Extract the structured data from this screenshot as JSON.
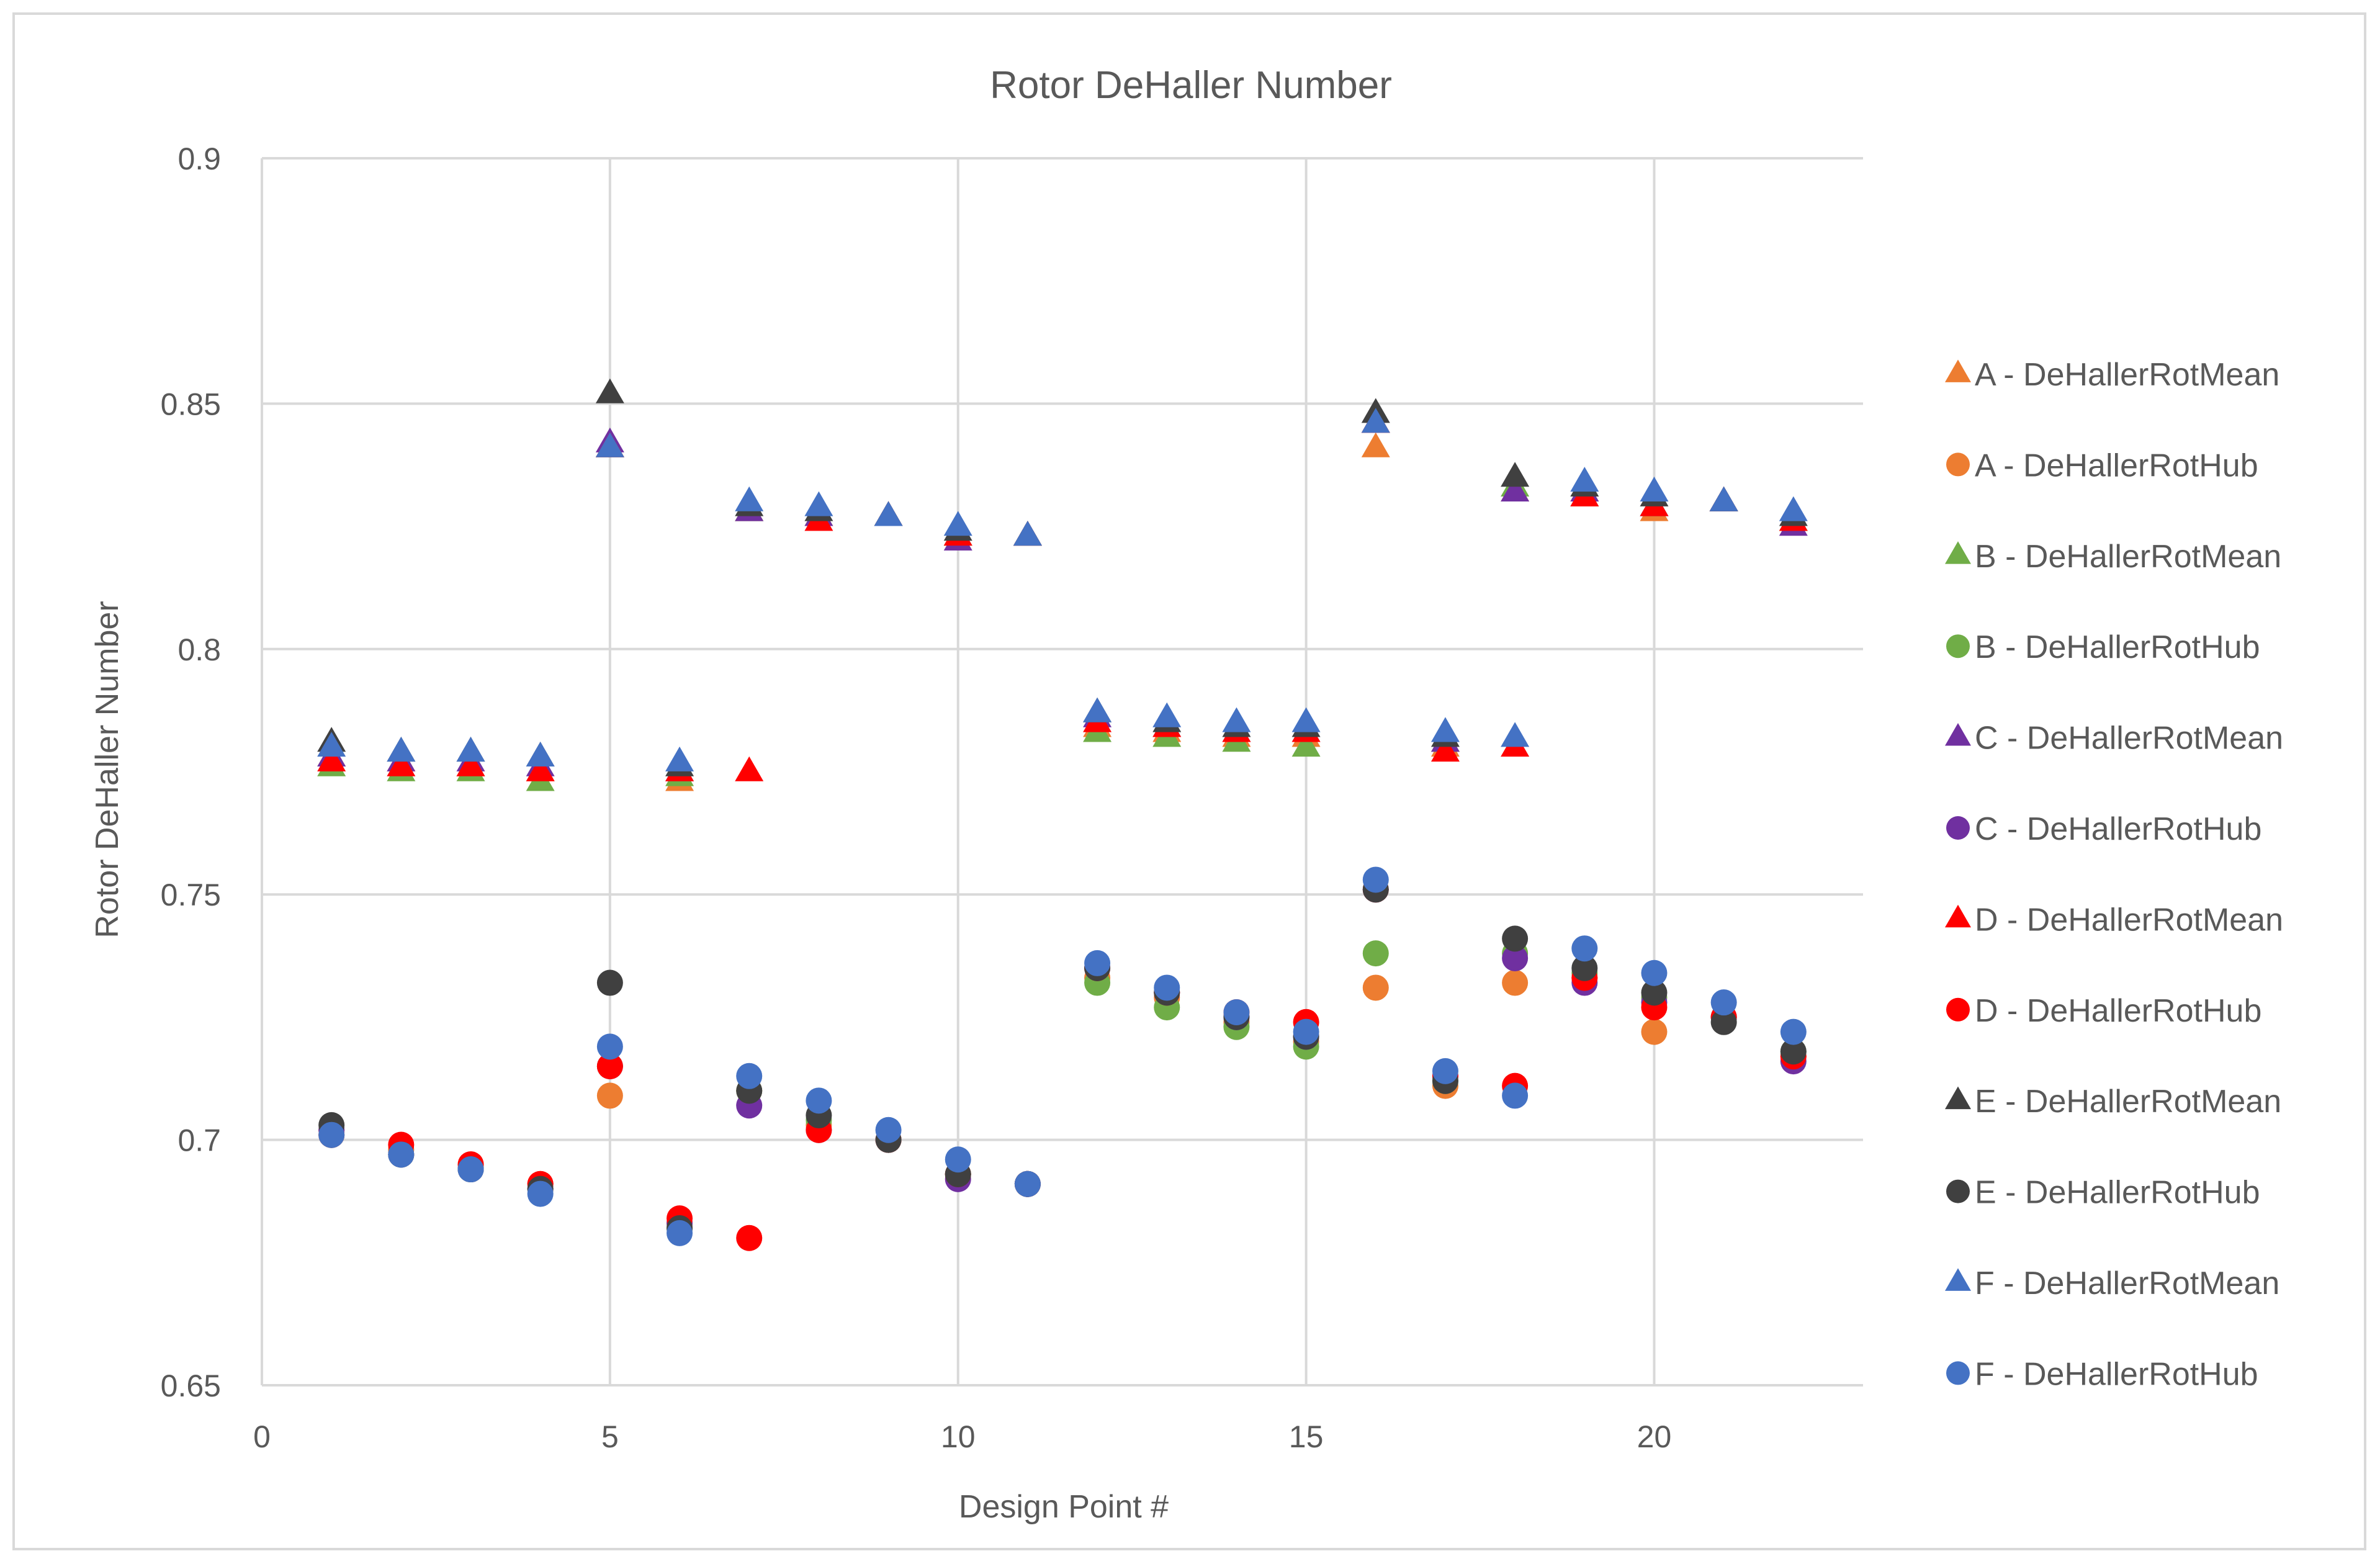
{
  "chart_data": {
    "type": "scatter",
    "title": "Rotor DeHaller Number",
    "xlabel": "Design Point #",
    "ylabel": "Rotor DeHaller Number",
    "xlim": [
      0,
      23
    ],
    "ylim": [
      0.65,
      0.9
    ],
    "x_ticks": [
      0,
      5,
      10,
      15,
      20
    ],
    "y_ticks": [
      0.65,
      0.7,
      0.75,
      0.8,
      0.85,
      0.9
    ],
    "x_tick_labels": [
      "0",
      "5",
      "10",
      "15",
      "20"
    ],
    "y_tick_labels": [
      "0.65",
      "0.7",
      "0.75",
      "0.8",
      "0.85",
      "0.9"
    ],
    "grid": true,
    "legend_position": "right",
    "series": [
      {
        "name": "A - DeHallerRotMean",
        "marker": "triangle",
        "color": "#ed7d31",
        "x": [
          1,
          2,
          3,
          4,
          5,
          6,
          7,
          8,
          9,
          10,
          11,
          12,
          13,
          14,
          15,
          16,
          17,
          18,
          19,
          20,
          21,
          22
        ],
        "y": [
          0.778,
          0.777,
          0.776,
          0.775,
          0.841,
          0.773,
          0.828,
          0.827,
          0.827,
          0.823,
          0.823,
          0.784,
          0.783,
          0.782,
          0.782,
          0.841,
          0.78,
          0.832,
          0.831,
          0.828,
          0.83,
          0.826
        ]
      },
      {
        "name": "A - DeHallerRotHub",
        "marker": "circle",
        "color": "#ed7d31",
        "x": [
          1,
          2,
          3,
          4,
          5,
          6,
          7,
          8,
          9,
          10,
          11,
          12,
          13,
          14,
          15,
          16,
          17,
          18,
          19,
          20,
          21,
          22
        ],
        "y": [
          0.702,
          0.698,
          0.695,
          0.691,
          0.709,
          0.683,
          0.71,
          0.703,
          0.7,
          0.693,
          0.691,
          0.733,
          0.729,
          0.724,
          0.72,
          0.731,
          0.711,
          0.732,
          0.733,
          0.722,
          0.725,
          0.717
        ]
      },
      {
        "name": "B - DeHallerRotMean",
        "marker": "triangle",
        "color": "#70ad47",
        "x": [
          1,
          2,
          3,
          4,
          5,
          6,
          7,
          8,
          9,
          10,
          11,
          12,
          13,
          14,
          15,
          16,
          17,
          18,
          19,
          20,
          21,
          22
        ],
        "y": [
          0.776,
          0.775,
          0.775,
          0.773,
          0.841,
          0.774,
          0.828,
          0.827,
          0.827,
          0.823,
          0.823,
          0.783,
          0.782,
          0.781,
          0.78,
          0.846,
          0.781,
          0.833,
          0.832,
          0.829,
          0.83,
          0.826
        ]
      },
      {
        "name": "B - DeHallerRotHub",
        "marker": "circle",
        "color": "#70ad47",
        "x": [
          1,
          2,
          3,
          4,
          5,
          6,
          7,
          8,
          9,
          10,
          11,
          12,
          13,
          14,
          15,
          16,
          17,
          18,
          19,
          20,
          21,
          22
        ],
        "y": [
          0.701,
          0.697,
          0.694,
          0.69,
          0.715,
          0.682,
          0.71,
          0.704,
          0.7,
          0.693,
          0.691,
          0.732,
          0.727,
          0.723,
          0.719,
          0.738,
          0.712,
          0.738,
          0.734,
          0.729,
          0.725,
          0.718
        ]
      },
      {
        "name": "C - DeHallerRotMean",
        "marker": "triangle",
        "color": "#7030a0",
        "x": [
          1,
          2,
          3,
          4,
          5,
          6,
          7,
          8,
          9,
          10,
          11,
          12,
          13,
          14,
          15,
          16,
          17,
          18,
          19,
          20,
          21,
          22
        ],
        "y": [
          0.778,
          0.777,
          0.777,
          0.776,
          0.842,
          0.775,
          0.828,
          0.827,
          0.827,
          0.822,
          0.823,
          0.786,
          0.784,
          0.783,
          0.783,
          0.846,
          0.781,
          0.832,
          0.832,
          0.829,
          0.83,
          0.825
        ]
      },
      {
        "name": "C - DeHallerRotHub",
        "marker": "circle",
        "color": "#7030a0",
        "x": [
          1,
          2,
          3,
          4,
          5,
          6,
          7,
          8,
          9,
          10,
          11,
          12,
          13,
          14,
          15,
          16,
          17,
          18,
          19,
          20,
          21,
          22
        ],
        "y": [
          0.702,
          0.697,
          0.694,
          0.69,
          0.715,
          0.683,
          0.707,
          0.702,
          0.7,
          0.692,
          0.691,
          0.735,
          0.73,
          0.725,
          0.721,
          0.751,
          0.713,
          0.737,
          0.732,
          0.728,
          0.725,
          0.716
        ]
      },
      {
        "name": "D - DeHallerRotMean",
        "marker": "triangle",
        "color": "#ff0000",
        "x": [
          1,
          2,
          3,
          4,
          5,
          6,
          7,
          8,
          9,
          10,
          11,
          12,
          13,
          14,
          15,
          16,
          17,
          18,
          19,
          20,
          21,
          22
        ],
        "y": [
          0.777,
          0.776,
          0.776,
          0.775,
          0.841,
          0.775,
          0.775,
          0.826,
          0.827,
          0.823,
          0.823,
          0.785,
          0.784,
          0.783,
          0.783,
          0.846,
          0.779,
          0.78,
          0.831,
          0.829,
          0.83,
          0.826
        ]
      },
      {
        "name": "D - DeHallerRotHub",
        "marker": "circle",
        "color": "#ff0000",
        "x": [
          1,
          2,
          3,
          4,
          5,
          6,
          7,
          8,
          9,
          10,
          11,
          12,
          13,
          14,
          15,
          16,
          17,
          18,
          19,
          20,
          21,
          22
        ],
        "y": [
          0.701,
          0.699,
          0.695,
          0.691,
          0.715,
          0.684,
          0.68,
          0.702,
          0.7,
          0.693,
          0.691,
          0.735,
          0.73,
          0.726,
          0.724,
          0.751,
          0.713,
          0.711,
          0.733,
          0.727,
          0.725,
          0.717
        ]
      },
      {
        "name": "E - DeHallerRotMean",
        "marker": "triangle",
        "color": "#404040",
        "x": [
          1,
          2,
          3,
          4,
          5,
          6,
          7,
          8,
          9,
          10,
          11,
          12,
          13,
          14,
          15,
          16,
          17,
          18,
          19,
          20,
          21,
          22
        ],
        "y": [
          0.781,
          0.779,
          0.779,
          0.778,
          0.852,
          0.776,
          0.829,
          0.828,
          0.827,
          0.824,
          0.823,
          0.787,
          0.785,
          0.784,
          0.784,
          0.848,
          0.782,
          0.835,
          0.833,
          0.831,
          0.83,
          0.827
        ]
      },
      {
        "name": "E - DeHallerRotHub",
        "marker": "circle",
        "color": "#404040",
        "x": [
          1,
          2,
          3,
          4,
          5,
          6,
          7,
          8,
          9,
          10,
          11,
          12,
          13,
          14,
          15,
          16,
          17,
          18,
          19,
          20,
          21,
          22
        ],
        "y": [
          0.703,
          0.697,
          0.694,
          0.69,
          0.732,
          0.682,
          0.71,
          0.705,
          0.7,
          0.693,
          0.691,
          0.735,
          0.73,
          0.725,
          0.721,
          0.751,
          0.712,
          0.741,
          0.735,
          0.73,
          0.724,
          0.718
        ]
      },
      {
        "name": "F - DeHallerRotMean",
        "marker": "triangle",
        "color": "#4472c4",
        "x": [
          1,
          2,
          3,
          4,
          5,
          6,
          7,
          8,
          9,
          10,
          11,
          12,
          13,
          14,
          15,
          16,
          17,
          18,
          19,
          20,
          21,
          22
        ],
        "y": [
          0.78,
          0.779,
          0.779,
          0.778,
          0.841,
          0.777,
          0.83,
          0.829,
          0.827,
          0.825,
          0.823,
          0.787,
          0.786,
          0.785,
          0.785,
          0.846,
          0.783,
          0.782,
          0.834,
          0.832,
          0.83,
          0.828
        ]
      },
      {
        "name": "F - DeHallerRotHub",
        "marker": "circle",
        "color": "#4472c4",
        "x": [
          1,
          2,
          3,
          4,
          5,
          6,
          7,
          8,
          9,
          10,
          11,
          12,
          13,
          14,
          15,
          16,
          17,
          18,
          19,
          20,
          21,
          22
        ],
        "y": [
          0.701,
          0.697,
          0.694,
          0.689,
          0.719,
          0.681,
          0.713,
          0.708,
          0.702,
          0.696,
          0.691,
          0.736,
          0.731,
          0.726,
          0.722,
          0.753,
          0.714,
          0.709,
          0.739,
          0.734,
          0.728,
          0.722
        ]
      }
    ]
  }
}
